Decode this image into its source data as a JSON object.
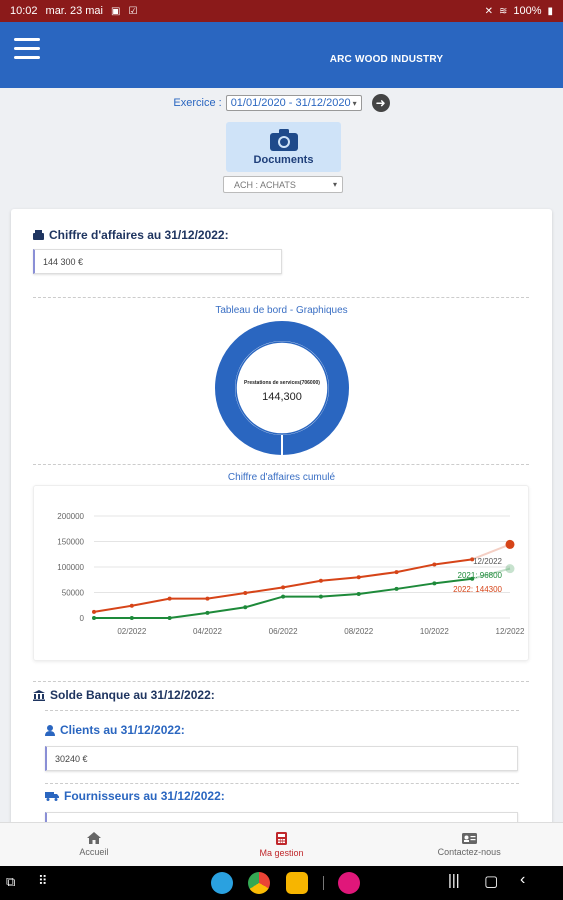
{
  "status": {
    "time": "10:02",
    "date": "mar. 23 mai",
    "battery": "100%"
  },
  "app": {
    "title": "ARC WOOD INDUSTRY"
  },
  "exercice": {
    "label": "Exercice :",
    "value": "01/01/2020 - 31/12/2020"
  },
  "documents": {
    "label": "Documents"
  },
  "journal": {
    "value": "ACH : ACHATS"
  },
  "ca": {
    "title": "Chiffre d'affaires au 31/12/2022:",
    "value": "144 300 €"
  },
  "dashboard": {
    "title": "Tableau de bord - Graphiques",
    "donut_label": "Prestations de services(706000)",
    "donut_value": "144,300"
  },
  "cumul": {
    "title": "Chiffre d'affaires cumulé"
  },
  "chart_data": {
    "type": "line",
    "x_ticks": [
      "02/2022",
      "04/2022",
      "06/2022",
      "08/2022",
      "10/2022",
      "12/2022"
    ],
    "y_ticks": [
      "200000",
      "150000",
      "100000",
      "50000",
      "0"
    ],
    "ylim": [
      0,
      200000
    ],
    "x_months": [
      "01/2022",
      "02/2022",
      "03/2022",
      "04/2022",
      "05/2022",
      "06/2022",
      "07/2022",
      "08/2022",
      "09/2022",
      "10/2022",
      "11/2022",
      "12/2022"
    ],
    "series": [
      {
        "name": "2022",
        "color": "#d64418",
        "values": [
          12000,
          24000,
          38000,
          38000,
          49000,
          60000,
          73000,
          80000,
          90000,
          105000,
          115000,
          144300
        ]
      },
      {
        "name": "2021",
        "color": "#1e8a3a",
        "values": [
          0,
          0,
          0,
          10000,
          21000,
          42000,
          42000,
          47000,
          57000,
          68000,
          77000,
          96800
        ]
      }
    ],
    "annotations": [
      "12/2022",
      "2021: 96800",
      "2022: 144300"
    ]
  },
  "banque": {
    "title": "Solde Banque au 31/12/2022:"
  },
  "clients": {
    "title": "Clients au 31/12/2022:",
    "value": "30240 €"
  },
  "fournisseurs": {
    "title": "Fournisseurs au 31/12/2022:"
  },
  "nav": {
    "home": "Accueil",
    "gestion": "Ma gestion",
    "contact": "Contactez-nous"
  }
}
